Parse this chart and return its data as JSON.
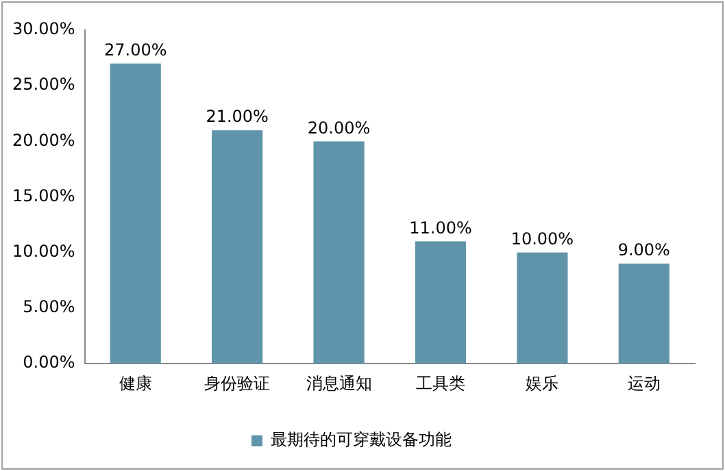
{
  "chart_data": {
    "type": "bar",
    "categories": [
      "健康",
      "身份验证",
      "消息通知",
      "工具类",
      "娱乐",
      "运动"
    ],
    "series": [
      {
        "name": "最期待的可穿戴设备功能",
        "color": "#5f94aa",
        "values": [
          27,
          21,
          20,
          11,
          10,
          9
        ],
        "value_labels": [
          "27.00%",
          "21.00%",
          "20.00%",
          "11.00%",
          "10.00%",
          "9.00%"
        ]
      }
    ],
    "ylim": [
      0,
      30
    ],
    "yticks": [
      {
        "value": 0,
        "label": "0.00%"
      },
      {
        "value": 5,
        "label": "5.00%"
      },
      {
        "value": 10,
        "label": "10.00%"
      },
      {
        "value": 15,
        "label": "15.00%"
      },
      {
        "value": 20,
        "label": "20.00%"
      },
      {
        "value": 25,
        "label": "25.00%"
      },
      {
        "value": 30,
        "label": "30.00%"
      }
    ],
    "grid": false,
    "legend": "bottom"
  }
}
